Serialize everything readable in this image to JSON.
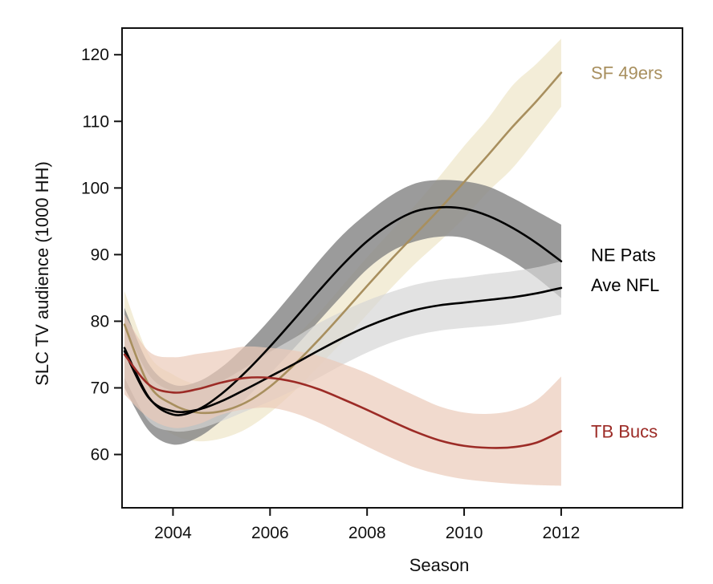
{
  "chart_data": {
    "type": "line",
    "xlabel": "Season",
    "ylabel": "SLC TV audience (1000 HH)",
    "xlim": [
      2002.95,
      2014.5
    ],
    "ylim": [
      52,
      124
    ],
    "x_ticks": [
      2004,
      2006,
      2008,
      2010,
      2012
    ],
    "y_ticks": [
      60,
      70,
      80,
      90,
      100,
      110,
      120
    ],
    "grid": false,
    "legend": "direct labels at right end of lines",
    "series": [
      {
        "name": "SF 49ers",
        "color": "#a88f5e",
        "band_color": "#eee5c8",
        "x": [
          2003,
          2003.5,
          2004,
          2004.5,
          2005,
          2005.5,
          2006,
          2006.5,
          2007,
          2007.5,
          2008,
          2008.5,
          2009,
          2009.5,
          2010,
          2010.5,
          2011,
          2011.5,
          2012
        ],
        "y": [
          79.5,
          70.5,
          67.5,
          66.3,
          66.5,
          67.8,
          70.2,
          73.5,
          77.2,
          81.2,
          85.3,
          89.3,
          93.1,
          96.9,
          100.9,
          105.0,
          109.2,
          113.1,
          117.3
        ],
        "lower": [
          74.5,
          66.0,
          63.0,
          62.0,
          62.4,
          63.8,
          66.3,
          69.5,
          73.2,
          77.0,
          81.0,
          85.0,
          88.7,
          92.0,
          95.5,
          99.5,
          103.0,
          107.5,
          112.2
        ],
        "upper": [
          84.5,
          75.0,
          72.0,
          70.5,
          70.6,
          71.8,
          74.1,
          77.5,
          81.2,
          85.4,
          89.6,
          93.6,
          97.5,
          101.8,
          106.3,
          110.5,
          115.4,
          118.7,
          122.4
        ]
      },
      {
        "name": "NE Pats",
        "color": "#000000",
        "band_color": "#8a8a8a",
        "x": [
          2003,
          2003.5,
          2004,
          2004.5,
          2005,
          2005.5,
          2006,
          2006.5,
          2007,
          2007.5,
          2008,
          2008.5,
          2009,
          2009.5,
          2010,
          2010.5,
          2011,
          2011.5,
          2012
        ],
        "y": [
          76.0,
          68.6,
          66.0,
          66.7,
          69.1,
          72.4,
          76.2,
          80.3,
          84.5,
          88.5,
          92.0,
          94.7,
          96.5,
          97.1,
          96.9,
          95.8,
          94.0,
          91.7,
          89.0
        ],
        "lower": [
          70.0,
          63.6,
          61.5,
          62.5,
          65.1,
          68.4,
          72.1,
          76.0,
          80.0,
          84.0,
          87.8,
          90.5,
          92.0,
          92.7,
          92.5,
          91.0,
          89.0,
          86.5,
          83.5
        ],
        "upper": [
          82.0,
          73.6,
          70.5,
          70.9,
          73.1,
          76.4,
          80.3,
          84.6,
          89.0,
          93.0,
          96.2,
          98.9,
          100.7,
          101.2,
          101.0,
          100.2,
          98.5,
          96.5,
          94.5
        ]
      },
      {
        "name": "Ave NFL",
        "color": "#000000",
        "band_color": "#d5d5d5",
        "x": [
          2003,
          2003.5,
          2004,
          2004.5,
          2005,
          2005.5,
          2006,
          2006.5,
          2007,
          2007.5,
          2008,
          2008.5,
          2009,
          2009.5,
          2010,
          2010.5,
          2011,
          2011.5,
          2012
        ],
        "y": [
          75.5,
          68.5,
          66.5,
          66.7,
          68.0,
          69.8,
          71.7,
          73.6,
          75.6,
          77.5,
          79.2,
          80.6,
          81.7,
          82.4,
          82.8,
          83.2,
          83.6,
          84.2,
          85.0
        ],
        "lower": [
          71.5,
          65.0,
          63.5,
          63.8,
          65.0,
          66.5,
          68.0,
          69.7,
          71.5,
          73.5,
          75.3,
          76.8,
          77.9,
          78.6,
          79.0,
          79.3,
          79.7,
          80.3,
          81.0
        ],
        "upper": [
          79.5,
          72.0,
          69.5,
          69.6,
          71.0,
          73.1,
          75.4,
          77.5,
          79.7,
          81.5,
          83.1,
          84.4,
          85.5,
          86.2,
          86.6,
          87.1,
          87.5,
          88.1,
          89.0
        ]
      },
      {
        "name": "TB Bucs",
        "color": "#9c2b26",
        "band_color": "#ebcbb9",
        "x": [
          2003,
          2003.5,
          2004,
          2004.5,
          2005,
          2005.5,
          2006,
          2006.5,
          2007,
          2007.5,
          2008,
          2008.5,
          2009,
          2009.5,
          2010,
          2010.5,
          2011,
          2011.5,
          2012
        ],
        "y": [
          75.0,
          70.5,
          69.3,
          69.8,
          70.8,
          71.5,
          71.5,
          70.9,
          69.8,
          68.3,
          66.7,
          65.0,
          63.4,
          62.1,
          61.3,
          61.0,
          61.1,
          61.8,
          63.5
        ],
        "lower": [
          69.0,
          65.5,
          64.0,
          64.5,
          66.0,
          66.8,
          67.0,
          66.2,
          64.8,
          63.0,
          61.2,
          59.5,
          58.0,
          57.0,
          56.3,
          55.9,
          55.6,
          55.4,
          55.3
        ],
        "upper": [
          81.0,
          75.5,
          74.6,
          75.1,
          75.6,
          76.2,
          76.0,
          75.6,
          74.8,
          73.6,
          72.2,
          70.5,
          68.8,
          67.2,
          66.3,
          66.1,
          66.6,
          68.2,
          71.7
        ]
      }
    ],
    "label_positions_y": [
      117.3,
      90.0,
      85.5,
      63.5
    ]
  }
}
